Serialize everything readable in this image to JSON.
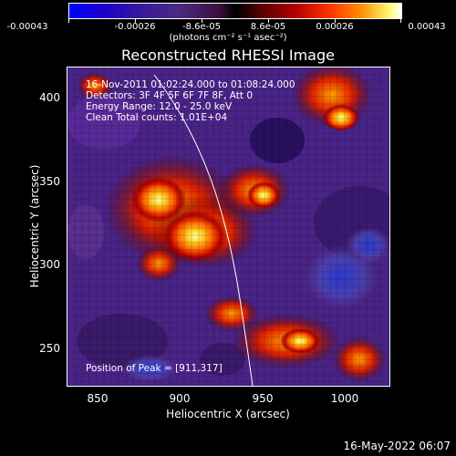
{
  "colorbar": {
    "tick_labels": [
      "-0.00043",
      "-0.00026",
      "-8.6e-05",
      "8.6e-05",
      "0.00026",
      "0.00043"
    ],
    "units": "(photons cm⁻² s⁻¹ asec⁻²)"
  },
  "title": "Reconstructed RHESSI Image",
  "info": {
    "line1": "16-Nov-2011 01:02:24.000 to 01:08:24.000",
    "line2": "Detectors: 3F 4F 5F 6F 7F 8F, Att 0",
    "line3": "Energy Range: 12.0 - 25.0 keV",
    "line4": "Clean     Total counts: 1.01E+04",
    "peak": "Position of Peak = [911,317]"
  },
  "axes": {
    "x_title": "Heliocentric X (arcsec)",
    "y_title": "Heliocentric Y (arcsec)",
    "x_ticks": [
      "850",
      "900",
      "950",
      "1000"
    ],
    "y_ticks": [
      "400",
      "350",
      "300",
      "250"
    ],
    "xlim": [
      832,
      1025
    ],
    "ylim": [
      225,
      420
    ]
  },
  "footer_date": "16-May-2022 06:07"
}
